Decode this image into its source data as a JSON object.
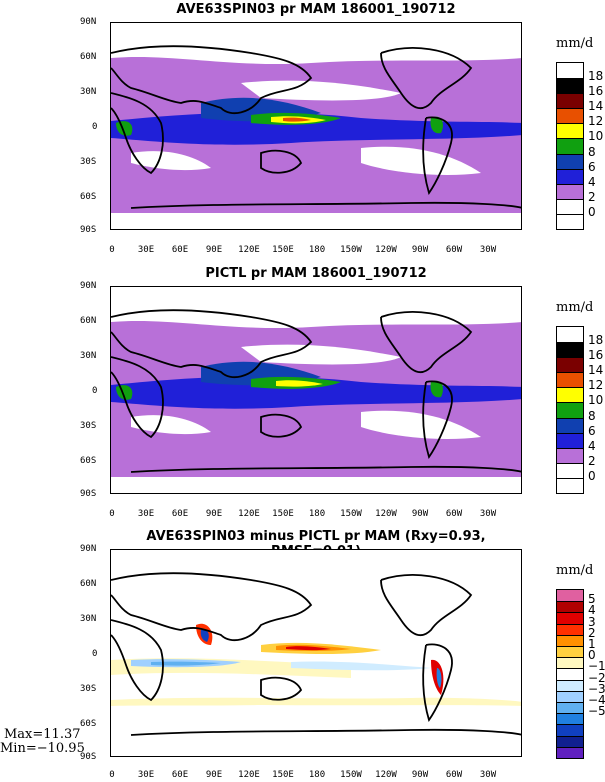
{
  "panels": [
    {
      "title": "AVE63SPIN03 pr MAM 186001_190712",
      "units": "mm/d",
      "legend_labels": [
        "18",
        "16",
        "14",
        "12",
        "10",
        "8",
        "6",
        "4",
        "2",
        "0"
      ],
      "legend_colors": [
        "#ffffff",
        "#000000",
        "#7a0000",
        "#e85000",
        "#ffff00",
        "#10a010",
        "#1040b0",
        "#2020d8",
        "#b870d8",
        "#ffffff",
        "#ffffff"
      ]
    },
    {
      "title": "PICTL pr MAM 186001_190712",
      "units": "mm/d",
      "legend_labels": [
        "18",
        "16",
        "14",
        "12",
        "10",
        "8",
        "6",
        "4",
        "2",
        "0"
      ],
      "legend_colors": [
        "#ffffff",
        "#000000",
        "#7a0000",
        "#e85000",
        "#ffff00",
        "#10a010",
        "#1040b0",
        "#2020d8",
        "#b870d8",
        "#ffffff",
        "#ffffff"
      ]
    },
    {
      "title": "AVE63SPIN03 minus PICTL pr MAM (Rxy=0.93, RMSE=0.01)",
      "units": "mm/d",
      "legend_labels": [
        "5",
        "4",
        "3",
        "2",
        "1",
        "0",
        "−1",
        "−2",
        "−3",
        "−4",
        "−5"
      ],
      "legend_colors": [
        "#e060a0",
        "#b00000",
        "#e00000",
        "#ff3000",
        "#ff9000",
        "#ffd040",
        "#fff8c0",
        "#ffffff",
        "#d0ecff",
        "#a0d0ff",
        "#60b0f0",
        "#2080e0",
        "#1040c0",
        "#102090",
        "#6020c0"
      ]
    }
  ],
  "lat_labels": [
    "90N",
    "60N",
    "30N",
    "0",
    "30S",
    "60S",
    "90S"
  ],
  "lon_labels": [
    "0",
    "30E",
    "60E",
    "90E",
    "120E",
    "150E",
    "180",
    "150W",
    "120W",
    "90W",
    "60W",
    "30W"
  ],
  "stats": {
    "max": "Max=11.37",
    "min": "Min=−10.95"
  },
  "colors": {
    "purple": "#b870d8",
    "blue": "#2020d8",
    "darkblue": "#1040b0",
    "green": "#10a010",
    "yellow": "#ffff00",
    "orange": "#e85000",
    "red": "#e00000"
  }
}
